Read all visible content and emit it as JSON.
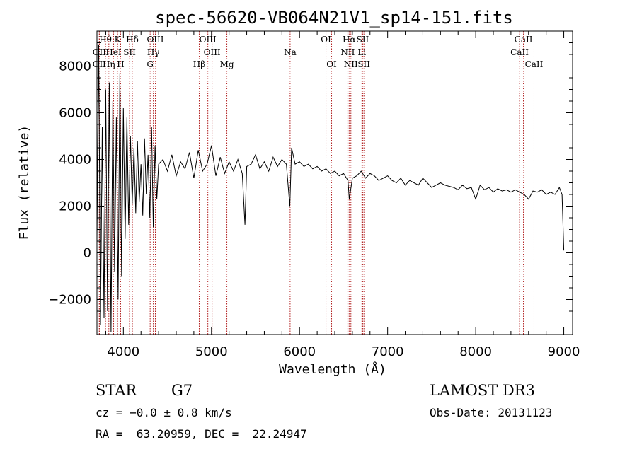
{
  "chart_data": {
    "type": "line",
    "title": "spec-56620-VB064N21V1_sp14-151.fits",
    "xlabel": "Wavelength (Å)",
    "ylabel": "Flux (relative)",
    "xlim": [
      3700,
      9100
    ],
    "ylim": [
      -3500,
      9500
    ],
    "xticks": [
      4000,
      5000,
      6000,
      7000,
      8000,
      9000
    ],
    "yticks": [
      -2000,
      0,
      2000,
      4000,
      6000,
      8000
    ],
    "ytick_labels": [
      "−2000",
      "0",
      "2000",
      "4000",
      "6000",
      "8000"
    ],
    "spectrum": {
      "name": "flux",
      "x": [
        3700,
        3720,
        3740,
        3760,
        3780,
        3800,
        3820,
        3840,
        3860,
        3880,
        3900,
        3920,
        3940,
        3960,
        3980,
        4000,
        4020,
        4040,
        4060,
        4080,
        4100,
        4120,
        4140,
        4160,
        4180,
        4200,
        4220,
        4240,
        4260,
        4280,
        4300,
        4320,
        4340,
        4360,
        4380,
        4400,
        4450,
        4500,
        4550,
        4600,
        4650,
        4700,
        4750,
        4800,
        4850,
        4900,
        4950,
        5000,
        5050,
        5100,
        5150,
        5200,
        5250,
        5300,
        5350,
        5380,
        5400,
        5450,
        5500,
        5550,
        5600,
        5650,
        5700,
        5750,
        5800,
        5850,
        5890,
        5910,
        5950,
        6000,
        6050,
        6100,
        6150,
        6200,
        6250,
        6300,
        6350,
        6400,
        6450,
        6500,
        6550,
        6565,
        6600,
        6650,
        6700,
        6750,
        6800,
        6850,
        6900,
        6950,
        7000,
        7050,
        7100,
        7150,
        7200,
        7250,
        7300,
        7350,
        7400,
        7450,
        7500,
        7550,
        7600,
        7650,
        7700,
        7750,
        7800,
        7850,
        7900,
        7950,
        8000,
        8050,
        8100,
        8150,
        8200,
        8250,
        8300,
        8350,
        8400,
        8450,
        8500,
        8550,
        8600,
        8650,
        8700,
        8750,
        8800,
        8850,
        8900,
        8950,
        8980,
        9000
      ],
      "y": [
        600,
        8900,
        -3100,
        5400,
        -2800,
        7000,
        -2500,
        7300,
        -3400,
        6500,
        -800,
        5800,
        -2000,
        7700,
        -1000,
        6200,
        600,
        5800,
        1200,
        5000,
        2100,
        4500,
        1700,
        4800,
        2200,
        3800,
        1600,
        4900,
        2500,
        4200,
        1500,
        5400,
        1100,
        4600,
        2300,
        3800,
        4000,
        3500,
        4200,
        3300,
        3900,
        3600,
        4300,
        3200,
        4400,
        3500,
        3800,
        4600,
        3300,
        4100,
        3400,
        3900,
        3500,
        4000,
        3400,
        1200,
        3700,
        3800,
        4200,
        3600,
        3900,
        3500,
        4100,
        3700,
        4000,
        3800,
        2000,
        4500,
        3800,
        3900,
        3700,
        3800,
        3600,
        3700,
        3500,
        3600,
        3400,
        3500,
        3300,
        3400,
        3100,
        2300,
        3200,
        3300,
        3500,
        3200,
        3400,
        3300,
        3100,
        3200,
        3300,
        3100,
        3000,
        3200,
        2900,
        3100,
        3000,
        2900,
        3200,
        3000,
        2800,
        2900,
        3000,
        2900,
        2850,
        2800,
        2700,
        2900,
        2750,
        2800,
        2300,
        2900,
        2700,
        2800,
        2600,
        2750,
        2650,
        2700,
        2600,
        2700,
        2600,
        2500,
        2300,
        2650,
        2600,
        2700,
        2500,
        2600,
        2500,
        2800,
        2500,
        100
      ]
    },
    "line_markers": [
      {
        "label": "Hθ",
        "x": 3797,
        "row": 1
      },
      {
        "label": "K",
        "x": 3934,
        "row": 1
      },
      {
        "label": "Hδ",
        "x": 4102,
        "row": 1
      },
      {
        "label": "OIII",
        "x": 4363,
        "row": 1
      },
      {
        "label": "OIII",
        "x": 4959,
        "row": 1
      },
      {
        "label": "OI",
        "x": 6300,
        "row": 1
      },
      {
        "label": "Hα",
        "x": 6563,
        "row": 1
      },
      {
        "label": "SII",
        "x": 6717,
        "row": 1
      },
      {
        "label": "CaII",
        "x": 8542,
        "row": 1
      },
      {
        "label": "OII",
        "x": 3727,
        "row": 2
      },
      {
        "label": "HeI",
        "x": 3889,
        "row": 2
      },
      {
        "label": "SII",
        "x": 4070,
        "row": 2
      },
      {
        "label": "Hγ",
        "x": 4340,
        "row": 2
      },
      {
        "label": "OIII",
        "x": 5007,
        "row": 2
      },
      {
        "label": "Na",
        "x": 5893,
        "row": 2
      },
      {
        "label": "NII",
        "x": 6548,
        "row": 2
      },
      {
        "label": "Li",
        "x": 6708,
        "row": 2
      },
      {
        "label": "CaII",
        "x": 8498,
        "row": 2
      },
      {
        "label": "OII",
        "x": 3727,
        "row": 3
      },
      {
        "label": "Hη",
        "x": 3835,
        "row": 3
      },
      {
        "label": "H",
        "x": 3969,
        "row": 3
      },
      {
        "label": "G",
        "x": 4304,
        "row": 3
      },
      {
        "label": "Hβ",
        "x": 4861,
        "row": 3
      },
      {
        "label": "Mg",
        "x": 5175,
        "row": 3
      },
      {
        "label": "OI",
        "x": 6364,
        "row": 3
      },
      {
        "label": "NII",
        "x": 6583,
        "row": 3
      },
      {
        "label": "SII",
        "x": 6731,
        "row": 3
      },
      {
        "label": "CaII",
        "x": 8662,
        "row": 3
      }
    ],
    "marker_color": "#b22222"
  },
  "info": {
    "object_class": "STAR",
    "subclass": "G7",
    "survey": "LAMOST DR3",
    "redshift_line": "cz = −0.0 ± 0.8 km/s",
    "obs_date": "Obs-Date: 20131123",
    "coords": "RA =  63.20959, DEC =  22.24947"
  }
}
